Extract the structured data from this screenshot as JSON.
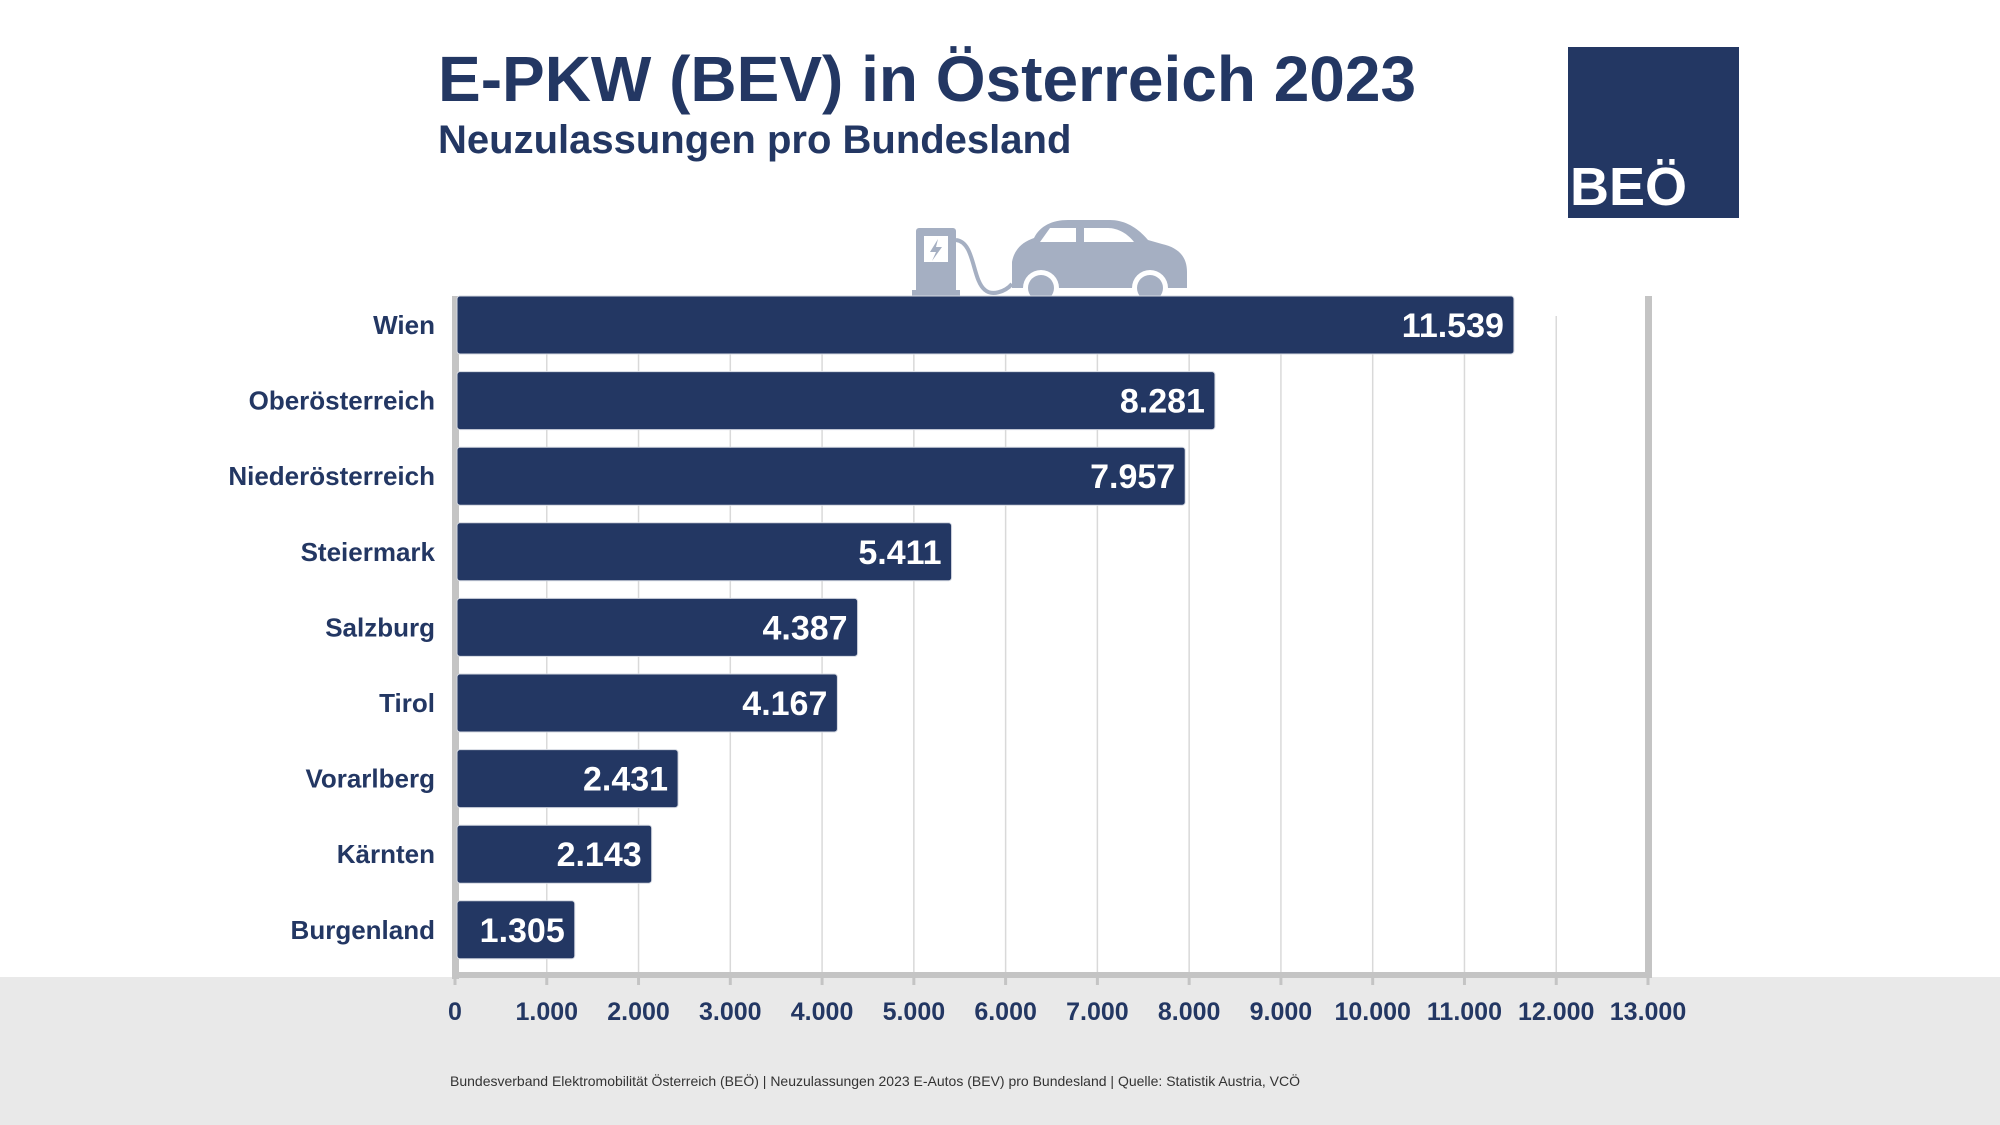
{
  "header": {
    "title": "E-PKW (BEV) in Österreich 2023",
    "subtitle": "Neuzulassungen pro Bundesland"
  },
  "logo": {
    "text": "BEÖ"
  },
  "footer": {
    "text": "Bundesverband Elektromobilität Österreich (BEÖ) | Neuzulassungen 2023 E-Autos (BEV) pro Bundesland | Quelle: Statistik Austria, VCÖ"
  },
  "icons": {
    "charger": "charging-station-icon",
    "car": "car-icon"
  },
  "colors": {
    "bar": "#233763",
    "text": "#233763",
    "icon": "#a5afc2",
    "axis": "#c4c4c4",
    "band": "#e9e9e9"
  },
  "chart_data": {
    "type": "bar",
    "orientation": "horizontal",
    "title": "E-PKW (BEV) in Österreich 2023",
    "subtitle": "Neuzulassungen pro Bundesland",
    "categories": [
      "Wien",
      "Oberösterreich",
      "Niederösterreich",
      "Steiermark",
      "Salzburg",
      "Tirol",
      "Vorarlberg",
      "Kärnten",
      "Burgenland"
    ],
    "values": [
      11539,
      8281,
      7957,
      5411,
      4387,
      4167,
      2431,
      2143,
      1305
    ],
    "value_labels": [
      "11.539",
      "8.281",
      "7.957",
      "5.411",
      "4.387",
      "4.167",
      "2.431",
      "2.143",
      "1.305"
    ],
    "xlim": [
      0,
      13000
    ],
    "xticks": [
      0,
      1000,
      2000,
      3000,
      4000,
      5000,
      6000,
      7000,
      8000,
      9000,
      10000,
      11000,
      12000,
      13000
    ],
    "xtick_labels": [
      "0",
      "1.000",
      "2.000",
      "3.000",
      "4.000",
      "5.000",
      "6.000",
      "7.000",
      "8.000",
      "9.000",
      "10.000",
      "11.000",
      "12.000",
      "13.000"
    ],
    "grid": true
  }
}
